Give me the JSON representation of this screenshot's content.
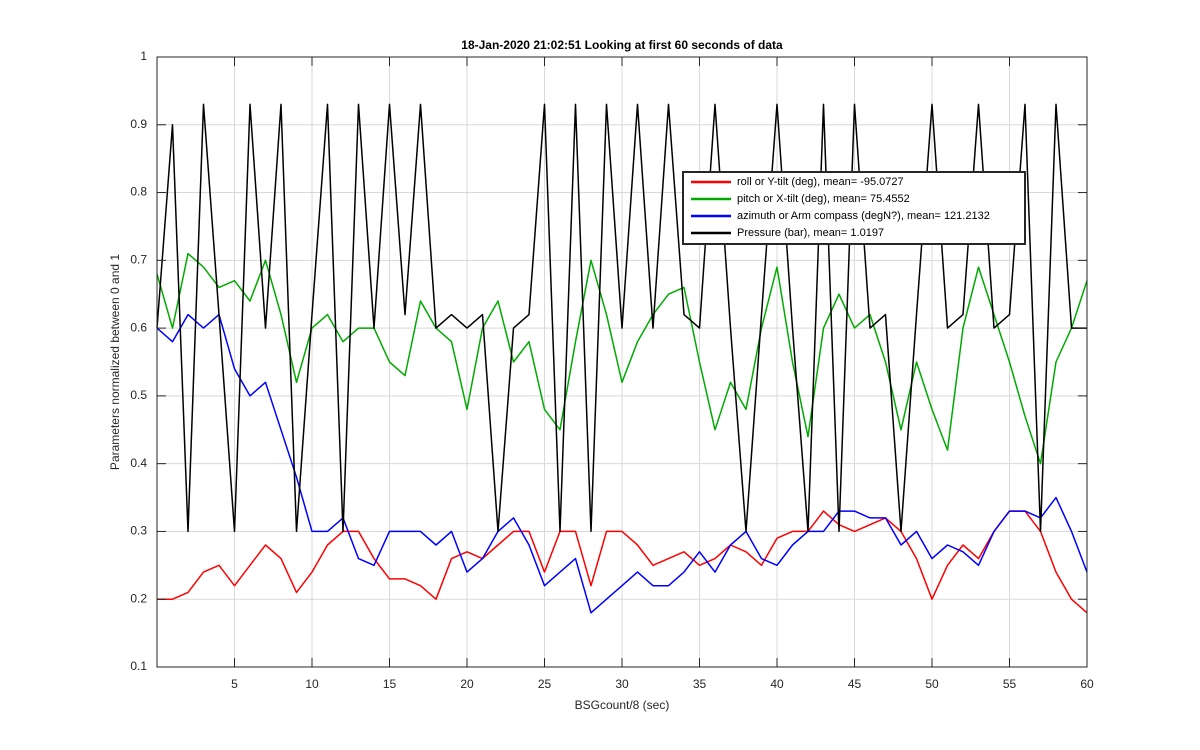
{
  "chart_data": {
    "type": "line",
    "title": "18-Jan-2020 21:02:51 Looking at first 60 seconds of data",
    "xlabel": "BSGcount/8 (sec)",
    "ylabel": "Parameters normalized between 0 and 1",
    "x": [
      0,
      1,
      2,
      3,
      4,
      5,
      6,
      7,
      8,
      9,
      10,
      11,
      12,
      13,
      14,
      15,
      16,
      17,
      18,
      19,
      20,
      21,
      22,
      23,
      24,
      25,
      26,
      27,
      28,
      29,
      30,
      31,
      32,
      33,
      34,
      35,
      36,
      37,
      38,
      39,
      40,
      41,
      42,
      43,
      44,
      45,
      46,
      47,
      48,
      49,
      50,
      51,
      52,
      53,
      54,
      55,
      56,
      57,
      58,
      59,
      60
    ],
    "xlim": [
      0,
      60
    ],
    "xticks": [
      5,
      10,
      15,
      20,
      25,
      30,
      35,
      40,
      45,
      50,
      55,
      60
    ],
    "ylim": [
      0.1,
      1
    ],
    "yticks": [
      0.1,
      0.2,
      0.3,
      0.4,
      0.5,
      0.6,
      0.7,
      0.8,
      0.9,
      1
    ],
    "grid": true,
    "legend": "upper right",
    "series": [
      {
        "name": "roll or Y-tilt (deg), mean= -95.0727",
        "color": "#ff0000",
        "values": [
          0.2,
          0.2,
          0.21,
          0.24,
          0.25,
          0.22,
          0.25,
          0.28,
          0.26,
          0.21,
          0.24,
          0.28,
          0.3,
          0.3,
          0.26,
          0.23,
          0.23,
          0.22,
          0.2,
          0.26,
          0.27,
          0.26,
          0.28,
          0.3,
          0.3,
          0.24,
          0.3,
          0.3,
          0.22,
          0.3,
          0.3,
          0.28,
          0.25,
          0.26,
          0.27,
          0.25,
          0.26,
          0.28,
          0.27,
          0.25,
          0.29,
          0.3,
          0.3,
          0.33,
          0.31,
          0.3,
          0.31,
          0.32,
          0.3,
          0.26,
          0.2,
          0.25,
          0.28,
          0.26,
          0.3,
          0.33,
          0.33,
          0.3,
          0.24,
          0.2,
          0.18
        ]
      },
      {
        "name": "pitch or X-tilt (deg), mean= 75.4552",
        "color": "#00aa00",
        "values": [
          0.68,
          0.6,
          0.71,
          0.69,
          0.66,
          0.67,
          0.64,
          0.7,
          0.62,
          0.52,
          0.6,
          0.62,
          0.58,
          0.6,
          0.6,
          0.55,
          0.53,
          0.64,
          0.6,
          0.58,
          0.48,
          0.6,
          0.64,
          0.55,
          0.58,
          0.48,
          0.45,
          0.58,
          0.7,
          0.62,
          0.52,
          0.58,
          0.62,
          0.65,
          0.66,
          0.55,
          0.45,
          0.52,
          0.48,
          0.6,
          0.69,
          0.55,
          0.44,
          0.6,
          0.65,
          0.6,
          0.62,
          0.55,
          0.45,
          0.55,
          0.48,
          0.42,
          0.6,
          0.69,
          0.62,
          0.55,
          0.47,
          0.4,
          0.55,
          0.6,
          0.67
        ]
      },
      {
        "name": "azimuth or Arm compass (degN?), mean= 121.2132",
        "color": "#0000ff",
        "values": [
          0.6,
          0.58,
          0.62,
          0.6,
          0.62,
          0.54,
          0.5,
          0.52,
          0.45,
          0.38,
          0.3,
          0.3,
          0.32,
          0.26,
          0.25,
          0.3,
          0.3,
          0.3,
          0.28,
          0.3,
          0.24,
          0.26,
          0.3,
          0.32,
          0.28,
          0.22,
          0.24,
          0.26,
          0.18,
          0.2,
          0.22,
          0.24,
          0.22,
          0.22,
          0.24,
          0.27,
          0.24,
          0.28,
          0.3,
          0.26,
          0.25,
          0.28,
          0.3,
          0.3,
          0.33,
          0.33,
          0.32,
          0.32,
          0.28,
          0.3,
          0.26,
          0.28,
          0.27,
          0.25,
          0.3,
          0.33,
          0.33,
          0.32,
          0.35,
          0.3,
          0.24
        ]
      },
      {
        "name": "Pressure (bar), mean= 1.0197",
        "color": "#000000",
        "values": [
          0.6,
          0.9,
          0.3,
          0.93,
          0.62,
          0.3,
          0.93,
          0.6,
          0.93,
          0.3,
          0.62,
          0.93,
          0.3,
          0.93,
          0.6,
          0.93,
          0.62,
          0.93,
          0.6,
          0.62,
          0.6,
          0.62,
          0.3,
          0.6,
          0.62,
          0.93,
          0.3,
          0.93,
          0.3,
          0.93,
          0.6,
          0.93,
          0.6,
          0.93,
          0.62,
          0.6,
          0.93,
          0.6,
          0.3,
          0.62,
          0.93,
          0.6,
          0.3,
          0.93,
          0.3,
          0.93,
          0.6,
          0.62,
          0.3,
          0.62,
          0.93,
          0.6,
          0.62,
          0.93,
          0.6,
          0.62,
          0.93,
          0.3,
          0.93,
          0.6,
          0.6
        ]
      }
    ]
  }
}
